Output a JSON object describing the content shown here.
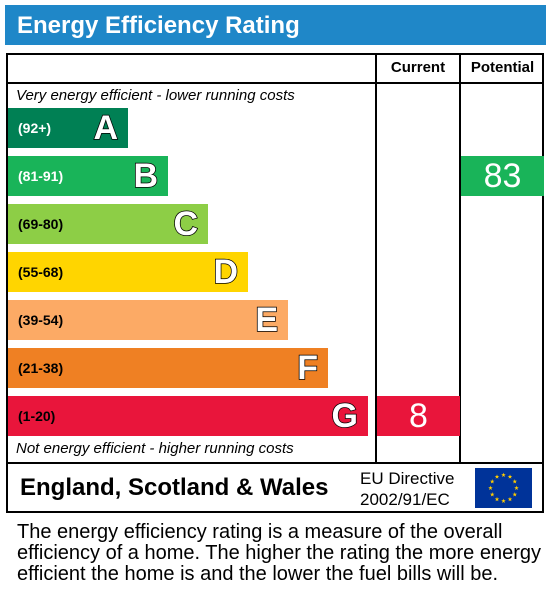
{
  "header": {
    "title": "Energy Efficiency Rating",
    "background": "#1f87c8"
  },
  "columns": {
    "current": "Current",
    "potential": "Potential"
  },
  "captions": {
    "top": "Very energy efficient - lower running costs",
    "bottom": "Not energy efficient - higher running costs"
  },
  "chart_data": {
    "type": "bar",
    "categories": [
      "A",
      "B",
      "C",
      "D",
      "E",
      "F",
      "G"
    ],
    "bands": [
      {
        "letter": "A",
        "range": "(92+)",
        "min": 92,
        "max": 100,
        "color": "#008054",
        "range_text_color": "#ffffff"
      },
      {
        "letter": "B",
        "range": "(81-91)",
        "min": 81,
        "max": 91,
        "color": "#19b459",
        "range_text_color": "#ffffff"
      },
      {
        "letter": "C",
        "range": "(69-80)",
        "min": 69,
        "max": 80,
        "color": "#8dce46",
        "range_text_color": "#000000"
      },
      {
        "letter": "D",
        "range": "(55-68)",
        "min": 55,
        "max": 68,
        "color": "#ffd500",
        "range_text_color": "#000000"
      },
      {
        "letter": "E",
        "range": "(39-54)",
        "min": 39,
        "max": 54,
        "color": "#fcaa65",
        "range_text_color": "#000000"
      },
      {
        "letter": "F",
        "range": "(21-38)",
        "min": 21,
        "max": 38,
        "color": "#ef8023",
        "range_text_color": "#000000"
      },
      {
        "letter": "G",
        "range": "(1-20)",
        "min": 1,
        "max": 20,
        "color": "#e9153b",
        "range_text_color": "#000000"
      }
    ],
    "current": {
      "value": 8,
      "band": "G",
      "color": "#e9153b"
    },
    "potential": {
      "value": 83,
      "band": "B",
      "color": "#19b459"
    }
  },
  "footer": {
    "region": "England, Scotland & Wales",
    "directive_line1": "EU Directive",
    "directive_line2": "2002/91/EC",
    "flag_color": "#003399",
    "star_color": "#ffcc00"
  },
  "description": "The energy efficiency rating is a measure of the overall efficiency of a home. The higher the rating the more energy efficient the home is and the lower the fuel bills will be."
}
